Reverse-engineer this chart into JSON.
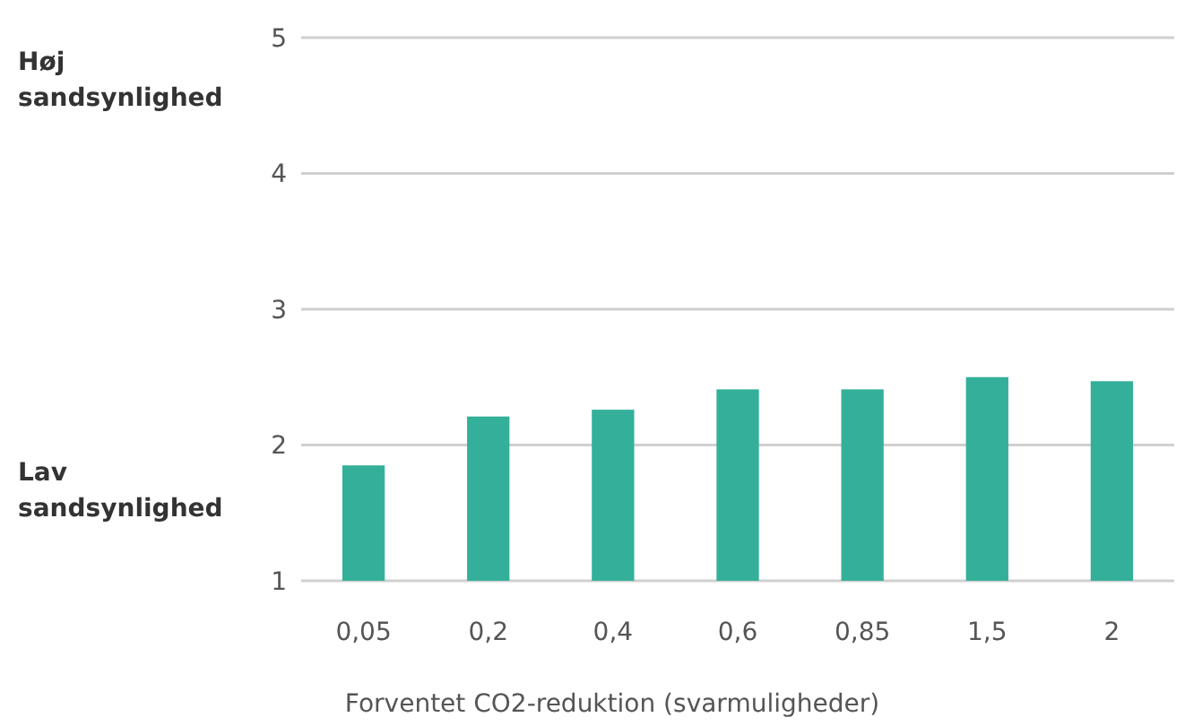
{
  "chart_data": {
    "type": "bar",
    "xlabel": "Forventet CO2-reduktion (svarmuligheder)",
    "categories": [
      "0,05",
      "0,2",
      "0,4",
      "0,6",
      "0,85",
      "1,5",
      "2"
    ],
    "values": [
      1.85,
      2.21,
      2.26,
      2.41,
      2.41,
      2.5,
      2.47
    ],
    "color": "#34b09a",
    "ylim": [
      1,
      5
    ],
    "yticks": [
      1,
      2,
      3,
      4,
      5
    ],
    "grid": "y",
    "annotations": [
      "Høj sandsynlighed",
      "Lav sandsynlighed"
    ]
  }
}
